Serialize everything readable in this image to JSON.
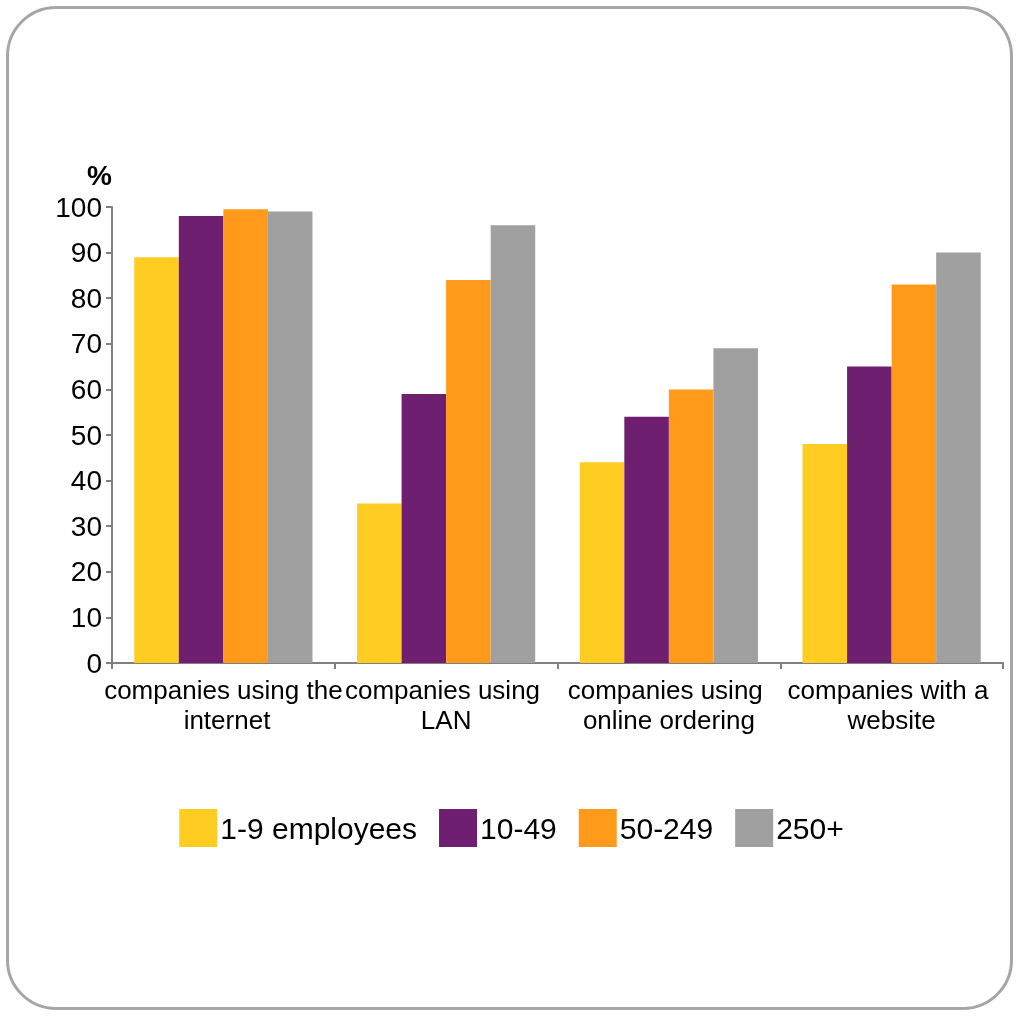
{
  "chart_data": {
    "type": "bar",
    "ylabel": "%",
    "categories": [
      "companies using the internet",
      "companies using LAN",
      "companies using online ordering",
      "companies with a website"
    ],
    "series": [
      {
        "name": "1-9 employees",
        "color": "#ffcc22",
        "values": [
          89,
          35,
          44,
          48
        ]
      },
      {
        "name": "10-49",
        "color": "#6e1f70",
        "values": [
          98,
          59,
          54,
          65
        ]
      },
      {
        "name": "50-249",
        "color": "#ff9a1a",
        "values": [
          99.5,
          84,
          60,
          83
        ]
      },
      {
        "name": "250+",
        "color": "#a0a0a0",
        "values": [
          99,
          96,
          69,
          90
        ]
      }
    ],
    "ylim": [
      0,
      100
    ],
    "yticks": [
      0,
      10,
      20,
      30,
      40,
      50,
      60,
      70,
      80,
      90,
      100
    ],
    "grid": false,
    "legend": "bottom"
  }
}
